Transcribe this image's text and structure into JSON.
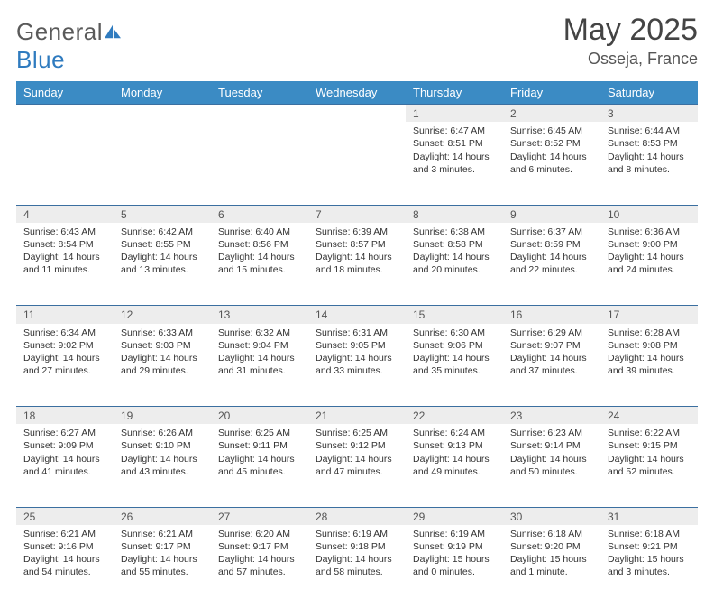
{
  "brand": {
    "word1": "General",
    "word2": "Blue"
  },
  "title": "May 2025",
  "location": "Osseja, France",
  "colors": {
    "header_bg": "#3b8bc4",
    "header_text": "#ffffff",
    "daynum_bg": "#ededed",
    "row_divider": "#3b6fa0",
    "text": "#333333",
    "logo_gray": "#5a5a5a",
    "logo_blue": "#2f7bbf"
  },
  "weekdays": [
    "Sunday",
    "Monday",
    "Tuesday",
    "Wednesday",
    "Thursday",
    "Friday",
    "Saturday"
  ],
  "weeks": [
    [
      null,
      null,
      null,
      null,
      {
        "n": "1",
        "sr": "Sunrise: 6:47 AM",
        "ss": "Sunset: 8:51 PM",
        "dl": "Daylight: 14 hours and 3 minutes."
      },
      {
        "n": "2",
        "sr": "Sunrise: 6:45 AM",
        "ss": "Sunset: 8:52 PM",
        "dl": "Daylight: 14 hours and 6 minutes."
      },
      {
        "n": "3",
        "sr": "Sunrise: 6:44 AM",
        "ss": "Sunset: 8:53 PM",
        "dl": "Daylight: 14 hours and 8 minutes."
      }
    ],
    [
      {
        "n": "4",
        "sr": "Sunrise: 6:43 AM",
        "ss": "Sunset: 8:54 PM",
        "dl": "Daylight: 14 hours and 11 minutes."
      },
      {
        "n": "5",
        "sr": "Sunrise: 6:42 AM",
        "ss": "Sunset: 8:55 PM",
        "dl": "Daylight: 14 hours and 13 minutes."
      },
      {
        "n": "6",
        "sr": "Sunrise: 6:40 AM",
        "ss": "Sunset: 8:56 PM",
        "dl": "Daylight: 14 hours and 15 minutes."
      },
      {
        "n": "7",
        "sr": "Sunrise: 6:39 AM",
        "ss": "Sunset: 8:57 PM",
        "dl": "Daylight: 14 hours and 18 minutes."
      },
      {
        "n": "8",
        "sr": "Sunrise: 6:38 AM",
        "ss": "Sunset: 8:58 PM",
        "dl": "Daylight: 14 hours and 20 minutes."
      },
      {
        "n": "9",
        "sr": "Sunrise: 6:37 AM",
        "ss": "Sunset: 8:59 PM",
        "dl": "Daylight: 14 hours and 22 minutes."
      },
      {
        "n": "10",
        "sr": "Sunrise: 6:36 AM",
        "ss": "Sunset: 9:00 PM",
        "dl": "Daylight: 14 hours and 24 minutes."
      }
    ],
    [
      {
        "n": "11",
        "sr": "Sunrise: 6:34 AM",
        "ss": "Sunset: 9:02 PM",
        "dl": "Daylight: 14 hours and 27 minutes."
      },
      {
        "n": "12",
        "sr": "Sunrise: 6:33 AM",
        "ss": "Sunset: 9:03 PM",
        "dl": "Daylight: 14 hours and 29 minutes."
      },
      {
        "n": "13",
        "sr": "Sunrise: 6:32 AM",
        "ss": "Sunset: 9:04 PM",
        "dl": "Daylight: 14 hours and 31 minutes."
      },
      {
        "n": "14",
        "sr": "Sunrise: 6:31 AM",
        "ss": "Sunset: 9:05 PM",
        "dl": "Daylight: 14 hours and 33 minutes."
      },
      {
        "n": "15",
        "sr": "Sunrise: 6:30 AM",
        "ss": "Sunset: 9:06 PM",
        "dl": "Daylight: 14 hours and 35 minutes."
      },
      {
        "n": "16",
        "sr": "Sunrise: 6:29 AM",
        "ss": "Sunset: 9:07 PM",
        "dl": "Daylight: 14 hours and 37 minutes."
      },
      {
        "n": "17",
        "sr": "Sunrise: 6:28 AM",
        "ss": "Sunset: 9:08 PM",
        "dl": "Daylight: 14 hours and 39 minutes."
      }
    ],
    [
      {
        "n": "18",
        "sr": "Sunrise: 6:27 AM",
        "ss": "Sunset: 9:09 PM",
        "dl": "Daylight: 14 hours and 41 minutes."
      },
      {
        "n": "19",
        "sr": "Sunrise: 6:26 AM",
        "ss": "Sunset: 9:10 PM",
        "dl": "Daylight: 14 hours and 43 minutes."
      },
      {
        "n": "20",
        "sr": "Sunrise: 6:25 AM",
        "ss": "Sunset: 9:11 PM",
        "dl": "Daylight: 14 hours and 45 minutes."
      },
      {
        "n": "21",
        "sr": "Sunrise: 6:25 AM",
        "ss": "Sunset: 9:12 PM",
        "dl": "Daylight: 14 hours and 47 minutes."
      },
      {
        "n": "22",
        "sr": "Sunrise: 6:24 AM",
        "ss": "Sunset: 9:13 PM",
        "dl": "Daylight: 14 hours and 49 minutes."
      },
      {
        "n": "23",
        "sr": "Sunrise: 6:23 AM",
        "ss": "Sunset: 9:14 PM",
        "dl": "Daylight: 14 hours and 50 minutes."
      },
      {
        "n": "24",
        "sr": "Sunrise: 6:22 AM",
        "ss": "Sunset: 9:15 PM",
        "dl": "Daylight: 14 hours and 52 minutes."
      }
    ],
    [
      {
        "n": "25",
        "sr": "Sunrise: 6:21 AM",
        "ss": "Sunset: 9:16 PM",
        "dl": "Daylight: 14 hours and 54 minutes."
      },
      {
        "n": "26",
        "sr": "Sunrise: 6:21 AM",
        "ss": "Sunset: 9:17 PM",
        "dl": "Daylight: 14 hours and 55 minutes."
      },
      {
        "n": "27",
        "sr": "Sunrise: 6:20 AM",
        "ss": "Sunset: 9:17 PM",
        "dl": "Daylight: 14 hours and 57 minutes."
      },
      {
        "n": "28",
        "sr": "Sunrise: 6:19 AM",
        "ss": "Sunset: 9:18 PM",
        "dl": "Daylight: 14 hours and 58 minutes."
      },
      {
        "n": "29",
        "sr": "Sunrise: 6:19 AM",
        "ss": "Sunset: 9:19 PM",
        "dl": "Daylight: 15 hours and 0 minutes."
      },
      {
        "n": "30",
        "sr": "Sunrise: 6:18 AM",
        "ss": "Sunset: 9:20 PM",
        "dl": "Daylight: 15 hours and 1 minute."
      },
      {
        "n": "31",
        "sr": "Sunrise: 6:18 AM",
        "ss": "Sunset: 9:21 PM",
        "dl": "Daylight: 15 hours and 3 minutes."
      }
    ]
  ]
}
